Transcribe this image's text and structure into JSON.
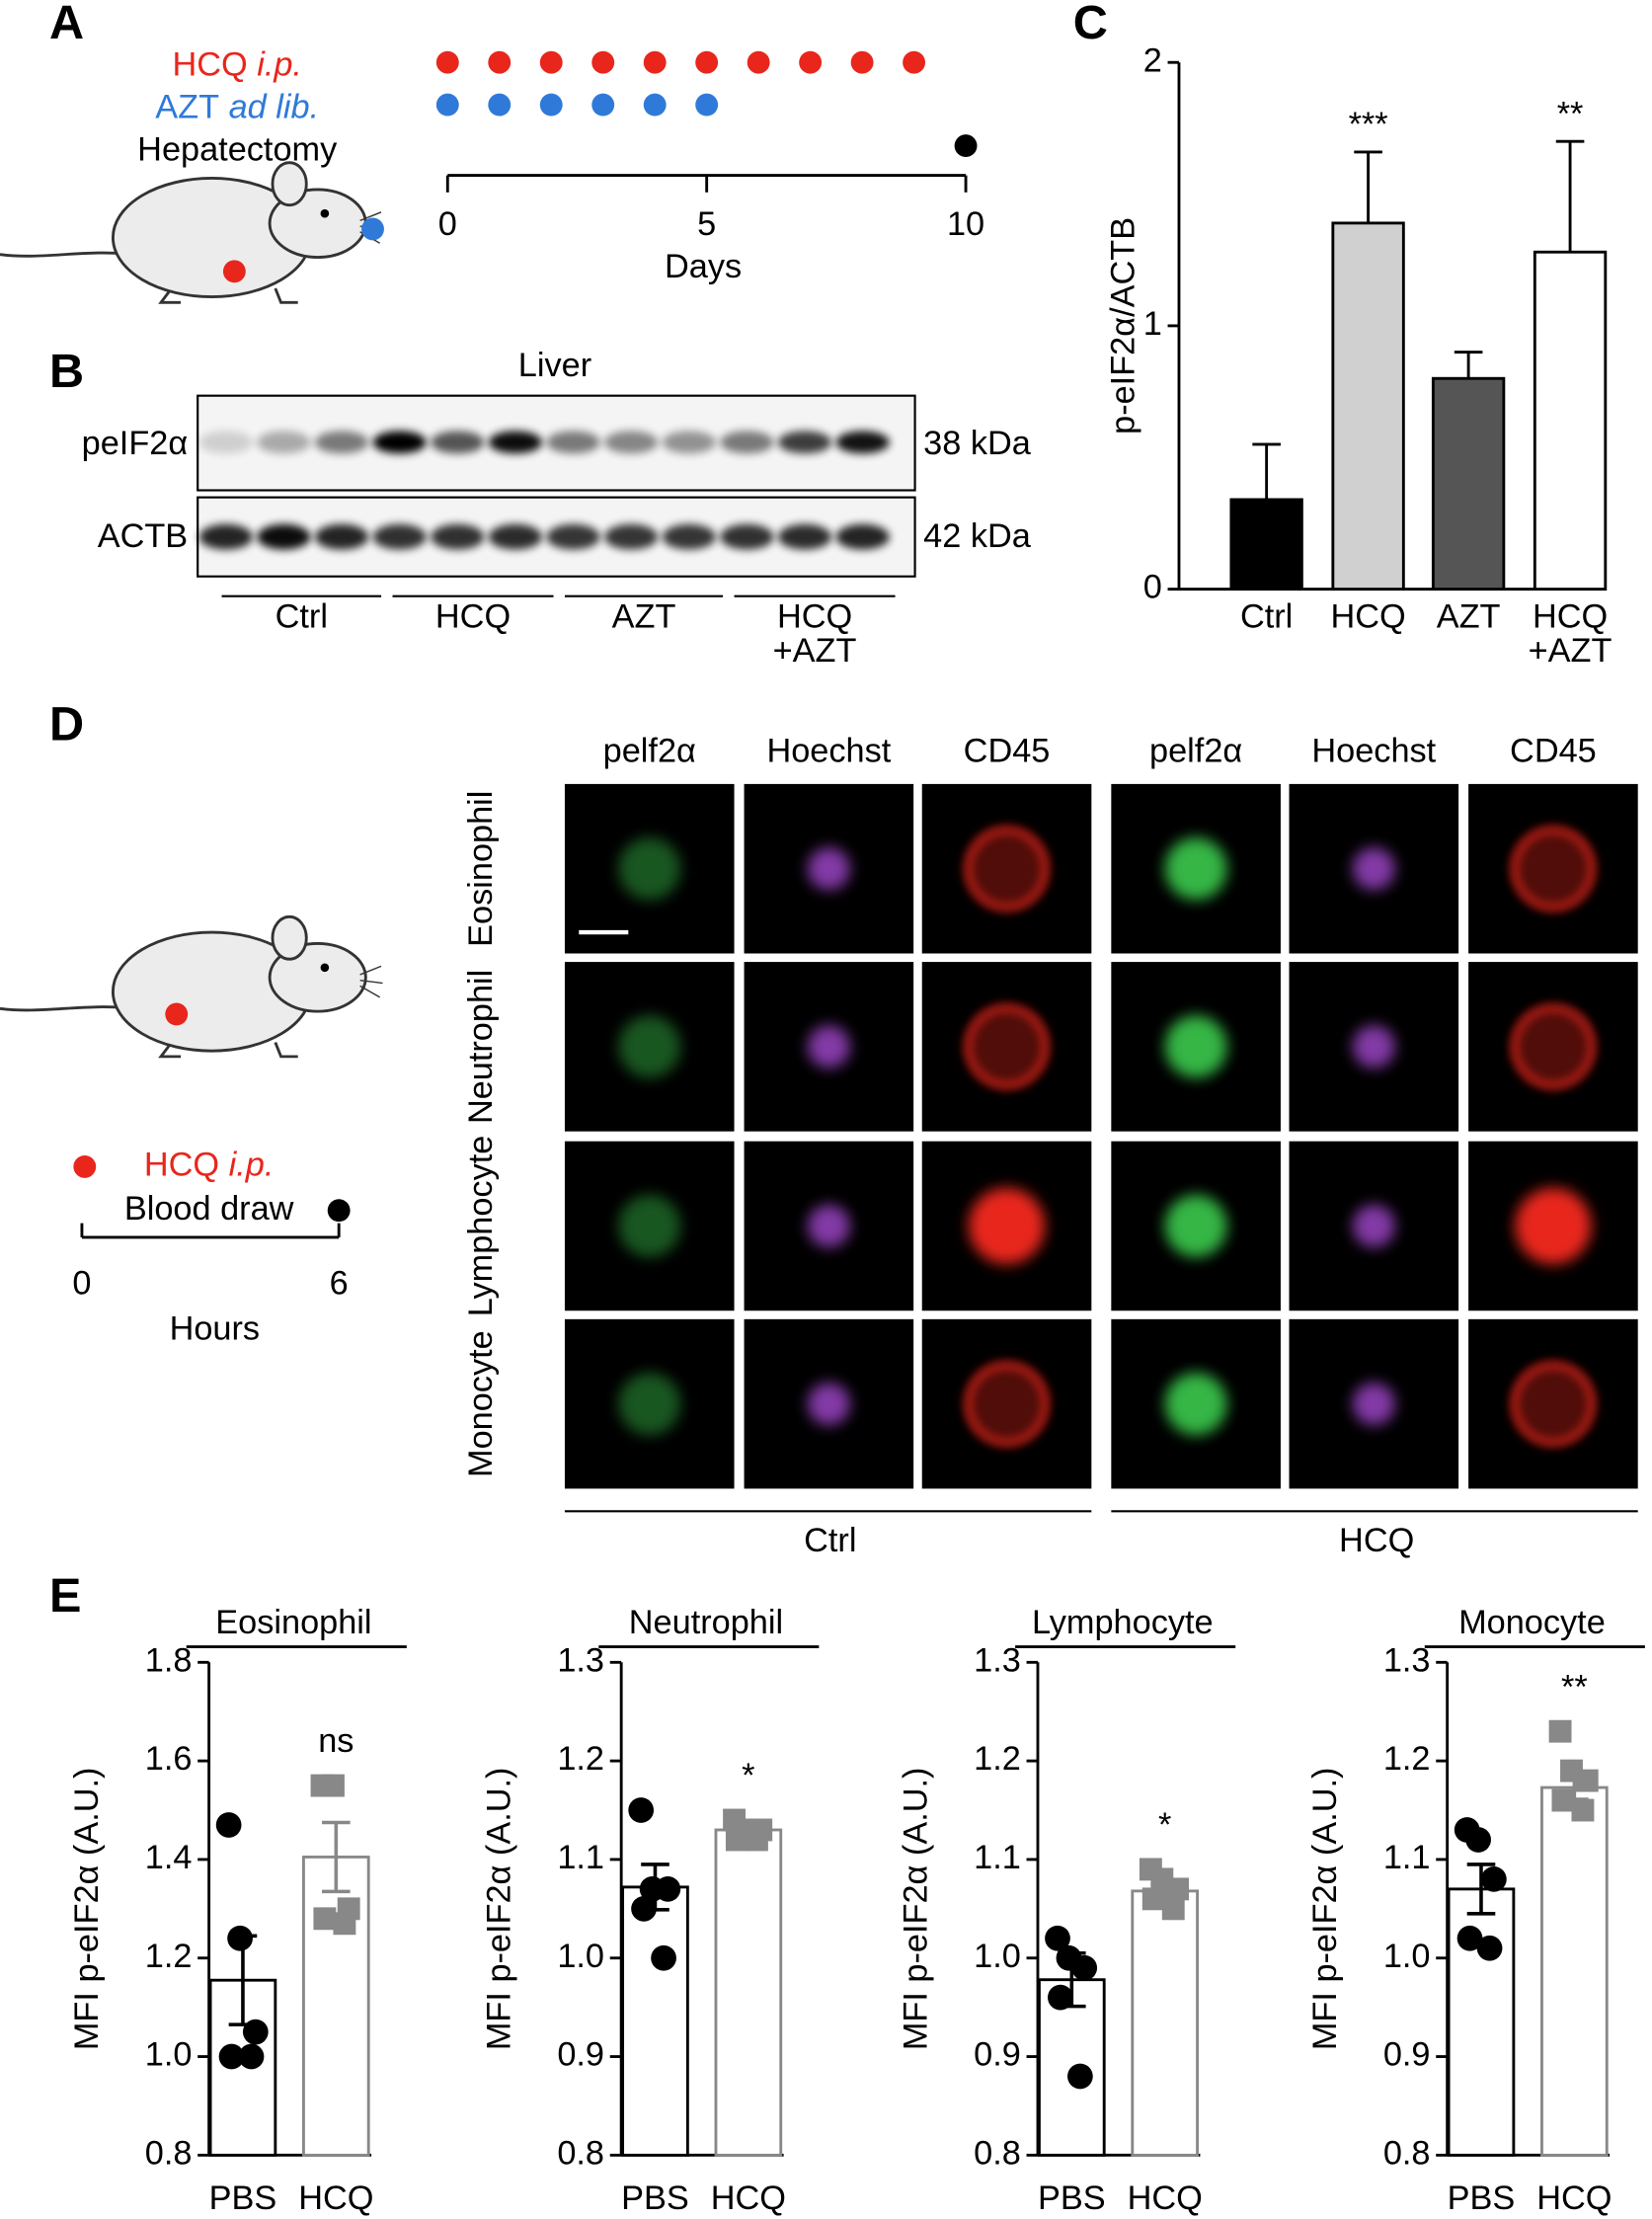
{
  "panel_labels": [
    "A",
    "B",
    "C",
    "D",
    "E"
  ],
  "panel_a": {
    "hcq": {
      "drug": "HCQ",
      "route": "i.p."
    },
    "azt": {
      "drug": "AZT",
      "route": "ad lib."
    },
    "surgery": "Hepatectomy",
    "schedule": {
      "hcq_days": [
        0,
        1,
        2,
        3,
        4,
        5,
        6,
        7,
        8,
        9
      ],
      "azt_days": [
        0,
        1,
        2,
        3,
        4,
        5
      ],
      "hepatectomy_day": 10
    },
    "xticks": [
      0,
      5,
      10
    ],
    "xlabel": "Days"
  },
  "panel_b": {
    "tissue": "Liver",
    "rows": [
      {
        "protein": "peIF2α",
        "size": "38 kDa"
      },
      {
        "protein": "ACTB",
        "size": "42 kDa"
      }
    ],
    "groups": [
      "Ctrl",
      "HCQ",
      "AZT",
      "HCQ\n+AZT"
    ]
  },
  "panel_d": {
    "hcq": {
      "drug": "HCQ",
      "route": "i.p."
    },
    "event": "Blood draw",
    "xticks": [
      0,
      6
    ],
    "xlabel": "Hours",
    "channels": [
      "pelf2α",
      "Hoechst",
      "CD45",
      "pelf2α",
      "Hoechst",
      "CD45"
    ],
    "cell_types": [
      "Eosinophil",
      "Neutrophil",
      "Lymphocyte",
      "Monocyte"
    ],
    "groups": [
      "Ctrl",
      "HCQ"
    ]
  },
  "chart_data": [
    {
      "type": "bar",
      "ylabel": "p-eIF2α/ACTB",
      "categories": [
        "Ctrl",
        "HCQ",
        "AZT",
        "HCQ\n+AZT"
      ],
      "values": [
        0.34,
        1.39,
        0.8,
        1.28
      ],
      "errors": [
        0.21,
        0.27,
        0.1,
        0.42
      ],
      "colors": [
        "#000000",
        "#d0d0d0",
        "#555555",
        "#ffffff"
      ],
      "annotations": [
        null,
        "***",
        null,
        "**"
      ],
      "ylim": [
        0,
        2
      ],
      "yticks": [
        0,
        1,
        2
      ]
    },
    {
      "type": "bar",
      "title": "Eosinophil",
      "ylabel": "MFI p-eIF2α (A.U.)",
      "categories": [
        "PBS",
        "HCQ"
      ],
      "values": [
        1.155,
        1.405
      ],
      "errors": [
        0.09,
        0.07
      ],
      "points": [
        [
          1.47,
          1.24,
          1.05,
          1.0,
          1.0
        ],
        [
          1.55,
          1.55,
          1.3,
          1.28,
          1.27
        ]
      ],
      "colors": [
        "#000000",
        "#888888"
      ],
      "annotation": "ns",
      "ylim": [
        0.8,
        1.8
      ],
      "yticks": [
        0.8,
        {
          "value": 1,
          "label": "1.0"
        },
        1.2,
        1.4,
        1.6,
        1.8
      ]
    },
    {
      "type": "bar",
      "title": "Neutrophil",
      "ylabel": "MFI p-eIF2α (A.U.)",
      "categories": [
        "PBS",
        "HCQ"
      ],
      "values": [
        1.072,
        1.13
      ],
      "errors": [
        0.023,
        0.008
      ],
      "points": [
        [
          1.15,
          1.07,
          1.07,
          1.05,
          1.0
        ],
        [
          1.14,
          1.13,
          1.13,
          1.12,
          1.12
        ]
      ],
      "colors": [
        "#000000",
        "#888888"
      ],
      "annotation": "*",
      "ylim": [
        0.8,
        1.3
      ],
      "yticks": [
        0.8,
        0.9,
        {
          "value": 1,
          "label": "1.0"
        },
        1.1,
        1.2,
        1.3
      ]
    },
    {
      "type": "bar",
      "title": "Lymphocyte",
      "ylabel": "MFI p-eIF2α (A.U.)",
      "categories": [
        "PBS",
        "HCQ"
      ],
      "values": [
        0.978,
        1.068
      ],
      "errors": [
        0.027,
        0.007
      ],
      "points": [
        [
          1.02,
          1.0,
          0.99,
          0.96,
          0.88
        ],
        [
          1.09,
          1.08,
          1.07,
          1.06,
          1.05
        ]
      ],
      "colors": [
        "#000000",
        "#888888"
      ],
      "annotation": "*",
      "ylim": [
        0.8,
        1.3
      ],
      "yticks": [
        0.8,
        0.9,
        {
          "value": 1,
          "label": "1.0"
        },
        1.1,
        1.2,
        1.3
      ]
    },
    {
      "type": "bar",
      "title": "Monocyte",
      "ylabel": "MFI p-eIF2α (A.U.)",
      "categories": [
        "PBS",
        "HCQ"
      ],
      "values": [
        1.07,
        1.173
      ],
      "errors": [
        0.025,
        0.012
      ],
      "points": [
        [
          1.13,
          1.12,
          1.08,
          1.02,
          1.01
        ],
        [
          1.23,
          1.19,
          1.18,
          1.16,
          1.15
        ]
      ],
      "colors": [
        "#000000",
        "#888888"
      ],
      "annotation": "**",
      "ylim": [
        0.8,
        1.3
      ],
      "yticks": [
        0.8,
        0.9,
        {
          "value": 1,
          "label": "1.0"
        },
        1.1,
        1.2,
        1.3
      ]
    }
  ]
}
